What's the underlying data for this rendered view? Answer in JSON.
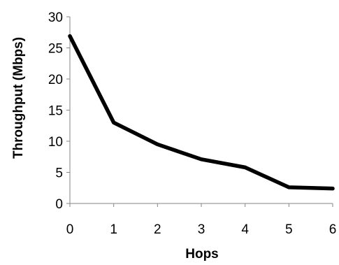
{
  "chart_data": {
    "type": "line",
    "title": "",
    "xlabel": "Hops",
    "ylabel": "Throughput (Mbps)",
    "x": [
      0,
      1,
      2,
      3,
      4,
      5,
      6
    ],
    "xlim": [
      0,
      6
    ],
    "ylim": [
      0,
      30
    ],
    "x_ticks": [
      "0",
      "1",
      "2",
      "3",
      "4",
      "5",
      "6"
    ],
    "y_ticks": [
      "0",
      "5",
      "10",
      "15",
      "20",
      "25",
      "30"
    ],
    "grid": false,
    "legend": "none",
    "series": [
      {
        "values": [
          26.9,
          13.0,
          9.5,
          7.1,
          5.8,
          2.6,
          2.4
        ],
        "color": "#000000"
      }
    ]
  }
}
